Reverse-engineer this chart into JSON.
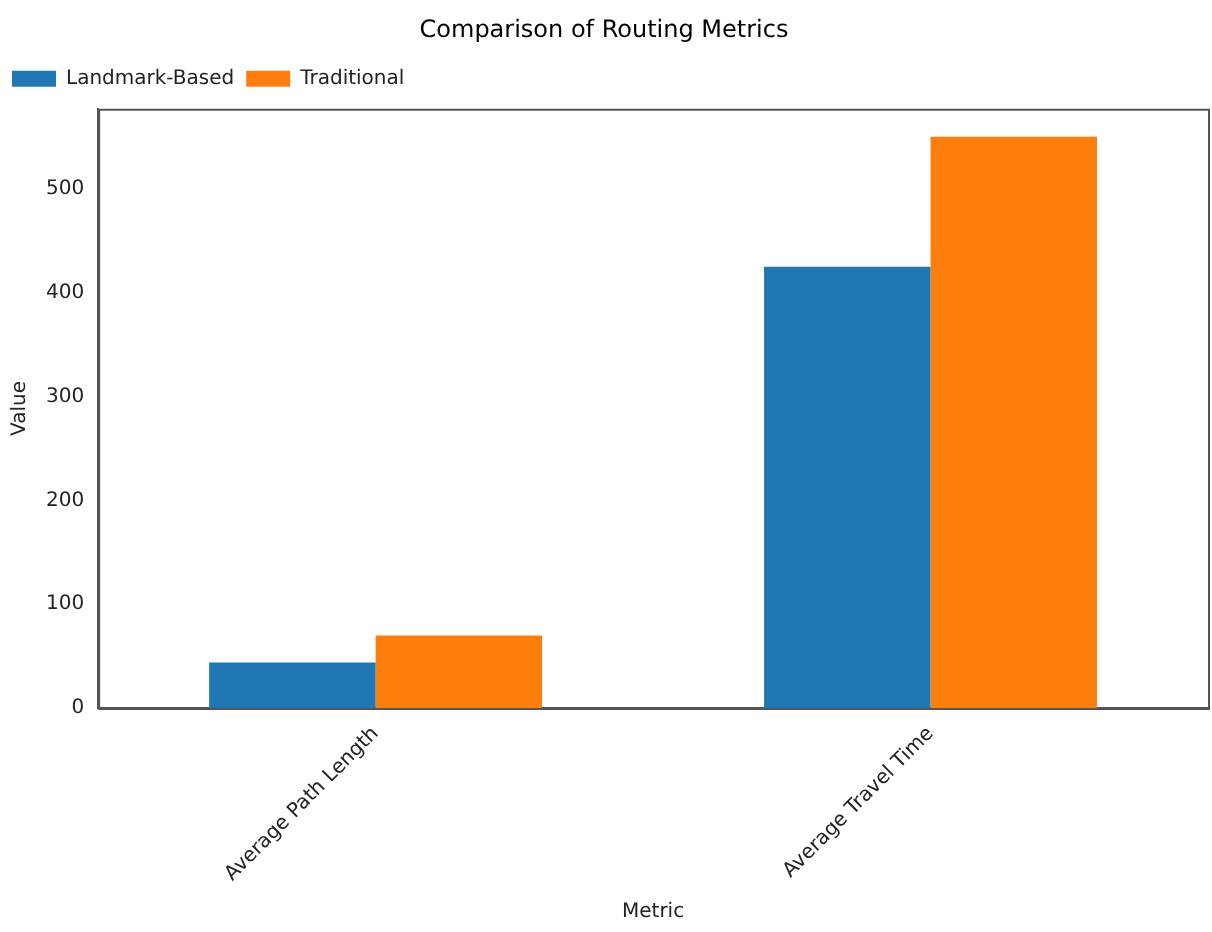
{
  "chart_data": {
    "type": "bar",
    "title": "Comparison of Routing Metrics",
    "xlabel": "Metric",
    "ylabel": "Value",
    "categories": [
      "Average Path Length",
      "Average Travel Time"
    ],
    "series": [
      {
        "name": "Landmark-Based",
        "color": "#1f77b4",
        "values": [
          44,
          425
        ]
      },
      {
        "name": "Traditional",
        "color": "#ff7f0e",
        "values": [
          70,
          550
        ]
      }
    ],
    "ylim": [
      0,
      577
    ],
    "yticks": [
      0,
      100,
      200,
      300,
      400,
      500
    ],
    "grid": false,
    "legend": "top left"
  }
}
